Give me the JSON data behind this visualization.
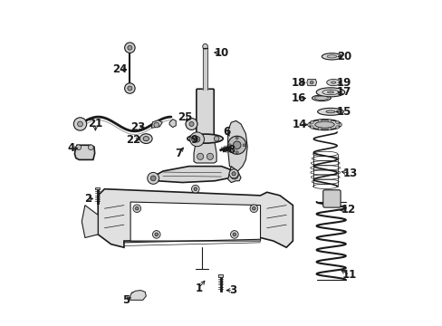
{
  "bg": "#ffffff",
  "fg": "#1a1a1a",
  "figwidth": 4.89,
  "figheight": 3.6,
  "dpi": 100,
  "labels": {
    "1": [
      0.43,
      0.115,
      0.455,
      0.145,
      "right"
    ],
    "2": [
      0.088,
      0.39,
      0.115,
      0.39,
      "right"
    ],
    "3": [
      0.535,
      0.108,
      0.505,
      0.108,
      "left"
    ],
    "4": [
      0.038,
      0.545,
      0.068,
      0.545,
      "right"
    ],
    "5": [
      0.205,
      0.078,
      0.23,
      0.09,
      "right"
    ],
    "6": [
      0.516,
      0.595,
      0.53,
      0.575,
      "right"
    ],
    "7": [
      0.368,
      0.53,
      0.39,
      0.555,
      "right"
    ],
    "8": [
      0.53,
      0.54,
      0.515,
      0.555,
      "left"
    ],
    "9": [
      0.415,
      0.57,
      0.435,
      0.57,
      "left"
    ],
    "10": [
      0.5,
      0.84,
      0.468,
      0.84,
      "left"
    ],
    "11": [
      0.895,
      0.155,
      0.86,
      0.175,
      "left"
    ],
    "12": [
      0.89,
      0.355,
      0.855,
      0.355,
      "left"
    ],
    "13": [
      0.898,
      0.468,
      0.86,
      0.475,
      "left"
    ],
    "14": [
      0.74,
      0.618,
      0.775,
      0.618,
      "right"
    ],
    "15": [
      0.878,
      0.658,
      0.842,
      0.658,
      "left"
    ],
    "16": [
      0.738,
      0.698,
      0.77,
      0.7,
      "right"
    ],
    "17": [
      0.878,
      0.718,
      0.848,
      0.718,
      "left"
    ],
    "18": [
      0.738,
      0.748,
      0.768,
      0.748,
      "right"
    ],
    "19": [
      0.878,
      0.748,
      0.85,
      0.748,
      "left"
    ],
    "20": [
      0.878,
      0.828,
      0.848,
      0.828,
      "left"
    ],
    "21": [
      0.112,
      0.622,
      0.112,
      0.59,
      "center"
    ],
    "22": [
      0.23,
      0.572,
      0.258,
      0.572,
      "right"
    ],
    "23": [
      0.242,
      0.61,
      0.272,
      0.61,
      "right"
    ],
    "24": [
      0.188,
      0.788,
      0.218,
      0.788,
      "right"
    ],
    "25": [
      0.388,
      0.64,
      0.402,
      0.62,
      "right"
    ]
  }
}
